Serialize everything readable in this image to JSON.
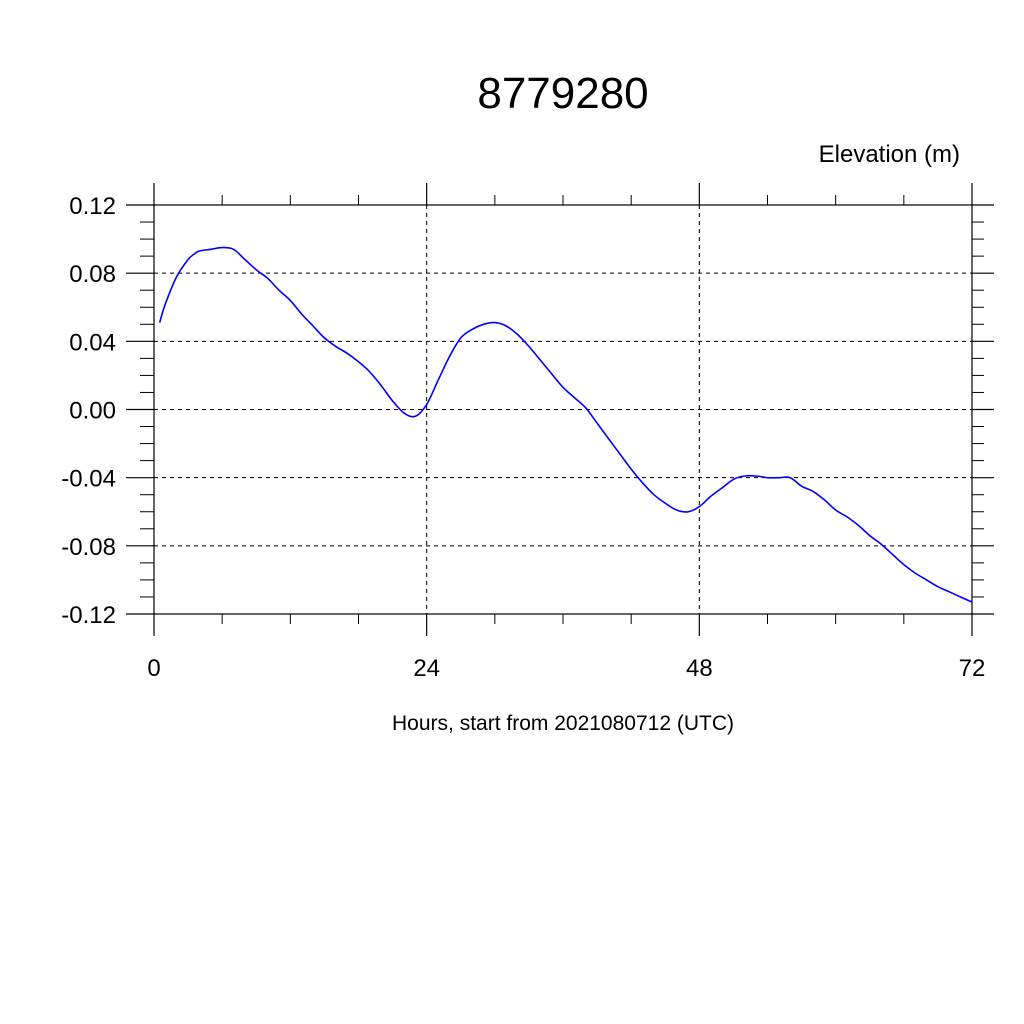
{
  "chart_data": {
    "type": "line",
    "title": "8779280",
    "ylabel": "Elevation (m)",
    "xlabel": "Hours, start from 2021080712 (UTC)",
    "xlim": [
      0,
      72
    ],
    "ylim": [
      -0.12,
      0.12
    ],
    "x_ticks": [
      0,
      24,
      48,
      72
    ],
    "x_tick_labels": [
      "0",
      "24",
      "48",
      "72"
    ],
    "y_ticks": [
      0.12,
      0.08,
      0.04,
      0.0,
      -0.04,
      -0.08,
      -0.12
    ],
    "y_tick_labels": [
      "0.12",
      "0.08",
      "0.04",
      "0.00",
      "-0.04",
      "-0.08",
      "-0.12"
    ],
    "grid": true,
    "line_color": "#0000ff",
    "series": [
      {
        "x": [
          0.5,
          1,
          2,
          3,
          3.5,
          4,
          5,
          6,
          7,
          8,
          9,
          10,
          11,
          12,
          13,
          14,
          15,
          16,
          17,
          18,
          19,
          20,
          21,
          22,
          23,
          24,
          25,
          26,
          27,
          28,
          29,
          30,
          31,
          32,
          33,
          34,
          35,
          36,
          37,
          38,
          39,
          40,
          41,
          42,
          43,
          44,
          45,
          46,
          47,
          48,
          49,
          50,
          51,
          52,
          53,
          54,
          55,
          56,
          57,
          58,
          59,
          60,
          61,
          62,
          63,
          64,
          65,
          66,
          67,
          68,
          69,
          70,
          71,
          72
        ],
        "y": [
          0.051,
          0.062,
          0.078,
          0.088,
          0.091,
          0.093,
          0.094,
          0.095,
          0.094,
          0.088,
          0.082,
          0.077,
          0.07,
          0.064,
          0.056,
          0.049,
          0.042,
          0.037,
          0.033,
          0.028,
          0.022,
          0.014,
          0.005,
          -0.002,
          -0.004,
          0.003,
          0.017,
          0.031,
          0.042,
          0.047,
          0.05,
          0.051,
          0.049,
          0.044,
          0.037,
          0.029,
          0.021,
          0.013,
          0.007,
          0.001,
          -0.008,
          -0.017,
          -0.026,
          -0.035,
          -0.043,
          -0.05,
          -0.055,
          -0.059,
          -0.06,
          -0.057,
          -0.051,
          -0.046,
          -0.041,
          -0.039,
          -0.039,
          -0.04,
          -0.04,
          -0.04,
          -0.045,
          -0.048,
          -0.053,
          -0.059,
          -0.063,
          -0.068,
          -0.074,
          -0.079,
          -0.085,
          -0.091,
          -0.096,
          -0.1,
          -0.104,
          -0.107,
          -0.11,
          -0.113
        ]
      }
    ]
  }
}
